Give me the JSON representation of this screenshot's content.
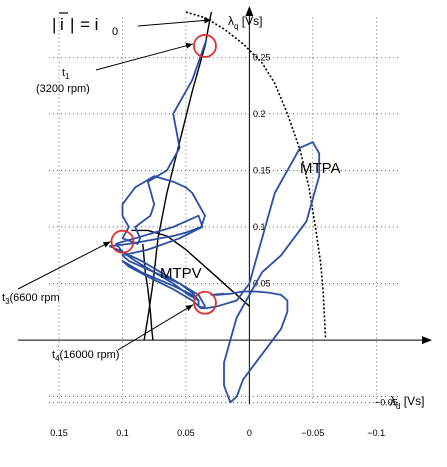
{
  "chart_data": {
    "type": "line",
    "title": "",
    "xlabel": {
      "main": "λ",
      "sub": "d",
      "unit": " [Vs]"
    },
    "ylabel": {
      "main": "λ",
      "sub": "q",
      "unit": " [Vs]"
    },
    "x_reversed": true,
    "xlim": [
      0.165,
      -0.125
    ],
    "ylim": [
      -0.06,
      0.29
    ],
    "grid": true,
    "grid_style": "dotted",
    "x_ticks": [
      0.15,
      0.1,
      0.05,
      0,
      -0.05,
      -0.1
    ],
    "x_tick_labels": [
      "0.15",
      "0.1",
      "0.05",
      "0",
      "−0.05",
      "−0.1"
    ],
    "y_ticks": [
      -0.05,
      0.05,
      0.1,
      0.15,
      0.2,
      0.25
    ],
    "y_tick_labels": [
      "−0.05",
      "0.05",
      "0.1",
      "0.15",
      "0.2",
      "0.25"
    ],
    "series": [
      {
        "name": "MTPA",
        "style": "dotted",
        "color": "#000000",
        "x": [
          0.05,
          0.035,
          0.02,
          0.005,
          -0.01,
          -0.02,
          -0.03,
          -0.04,
          -0.047,
          -0.052,
          -0.056,
          -0.058,
          -0.059,
          -0.06
        ],
        "y": [
          0.29,
          0.285,
          0.275,
          0.262,
          0.245,
          0.227,
          0.2,
          0.168,
          0.135,
          0.1,
          0.07,
          0.045,
          0.025,
          0.002
        ]
      },
      {
        "name": "MTPV",
        "style": "solid",
        "color": "#000000",
        "x": [
          0.093,
          0.08,
          0.065,
          0.05,
          0.03,
          0.015,
          0.0
        ],
        "y": [
          0.097,
          0.097,
          0.092,
          0.08,
          0.06,
          0.045,
          0.03
        ]
      },
      {
        "name": "",
        "style": "solid",
        "color": "#000000",
        "x": [
          0.03,
          0.035,
          0.045,
          0.055,
          0.065,
          0.072,
          0.076,
          0.08,
          0.083
        ],
        "y": [
          0.29,
          0.26,
          0.22,
          0.175,
          0.13,
          0.09,
          0.05,
          0.02,
          0.0
        ]
      },
      {
        "name": "",
        "style": "solid",
        "color": "#000000",
        "x": [
          0.084,
          0.082,
          0.08,
          0.078,
          0.077,
          0.076
        ],
        "y": [
          0.085,
          0.06,
          0.045,
          0.025,
          0.01,
          0.0
        ]
      },
      {
        "name": "",
        "style": "solid",
        "color": "#2b4fa3",
        "x": [
          0.035,
          0.034,
          0.045,
          0.06,
          0.055,
          0.065,
          0.08,
          0.075,
          0.078,
          0.09,
          0.086,
          0.088,
          0.1,
          0.095,
          0.1,
          0.1,
          0.09,
          0.075,
          0.06,
          0.05,
          0.045,
          0.04,
          0.035,
          0.038,
          0.05,
          0.06,
          0.07,
          0.085,
          0.095,
          0.11,
          0.1,
          0.085,
          0.07,
          0.055,
          0.045,
          0.04,
          0.048,
          0.06,
          0.075,
          0.09,
          0.1,
          0.105,
          0.1,
          0.09,
          0.075,
          0.06,
          0.05,
          0.04,
          0.037,
          0.055,
          0.08,
          0.1,
          0.095,
          0.075,
          0.055,
          0.04,
          0.035,
          0.038,
          0.045,
          0.06,
          0.078,
          0.095,
          0.1,
          0.085,
          0.06,
          0.045,
          0.04,
          0.04,
          0.035,
          0.025,
          0.01,
          0.0,
          -0.005,
          -0.01,
          -0.015,
          -0.02,
          -0.03,
          -0.04,
          -0.05,
          -0.055,
          -0.055,
          -0.05,
          -0.045,
          -0.035,
          -0.025,
          -0.01,
          0.0,
          0.01,
          0.015,
          0.02,
          0.02,
          0.015,
          0.01,
          0.005,
          -0.005,
          -0.015,
          -0.025,
          -0.03,
          -0.03,
          -0.025,
          -0.015,
          -0.005,
          0.005,
          0.015,
          0.025,
          0.03,
          0.02
        ],
        "y": [
          0.26,
          0.265,
          0.23,
          0.2,
          0.17,
          0.15,
          0.14,
          0.12,
          0.11,
          0.1,
          0.09,
          0.085,
          0.09,
          0.1,
          0.11,
          0.12,
          0.135,
          0.145,
          0.14,
          0.135,
          0.13,
          0.12,
          0.11,
          0.1,
          0.095,
          0.092,
          0.09,
          0.087,
          0.085,
          0.083,
          0.078,
          0.07,
          0.06,
          0.05,
          0.042,
          0.035,
          0.04,
          0.05,
          0.06,
          0.07,
          0.078,
          0.085,
          0.087,
          0.09,
          0.095,
          0.1,
          0.105,
          0.11,
          0.1,
          0.09,
          0.08,
          0.075,
          0.07,
          0.06,
          0.05,
          0.04,
          0.03,
          0.028,
          0.035,
          0.045,
          0.055,
          0.065,
          0.07,
          0.06,
          0.048,
          0.04,
          0.035,
          0.03,
          0.028,
          0.03,
          0.035,
          0.05,
          0.07,
          0.09,
          0.11,
          0.13,
          0.15,
          0.17,
          0.175,
          0.165,
          0.145,
          0.125,
          0.105,
          0.09,
          0.075,
          0.06,
          0.04,
          0.02,
          0.0,
          -0.02,
          -0.04,
          -0.055,
          -0.05,
          -0.035,
          -0.02,
          -0.005,
          0.01,
          0.025,
          0.035,
          0.04,
          0.042,
          0.043,
          0.043,
          0.041,
          0.04,
          0.04,
          0.041
        ]
      }
    ],
    "annotations": [
      {
        "text": "|",
        "role": "bar-left"
      },
      {
        "text": "i",
        "role": "current-symbol"
      },
      {
        "text": "|",
        "role": "bar-right"
      },
      {
        "text": "= i",
        "role": "current-eq"
      },
      {
        "text": "0",
        "role": "current-sub"
      },
      {
        "text": "t",
        "role": "t1-main"
      },
      {
        "text": "1",
        "role": "t1-sub"
      },
      {
        "text": "(3200 rpm)",
        "role": "t1-speed"
      },
      {
        "text": "t",
        "role": "t3-main"
      },
      {
        "text": "3",
        "role": "t3-sub"
      },
      {
        "text": "(6600 rpm",
        "role": "t3-speed"
      },
      {
        "text": "t",
        "role": "t4-main"
      },
      {
        "text": "4",
        "role": "t4-sub"
      },
      {
        "text": "(16000 rpm)",
        "role": "t4-speed"
      }
    ],
    "markers": [
      {
        "name": "t1",
        "x": 0.035,
        "y": 0.26,
        "color": "#e03030"
      },
      {
        "name": "t3",
        "x": 0.1,
        "y": 0.087,
        "color": "#e03030"
      },
      {
        "name": "t4",
        "x": 0.035,
        "y": 0.033,
        "color": "#e03030"
      }
    ]
  }
}
